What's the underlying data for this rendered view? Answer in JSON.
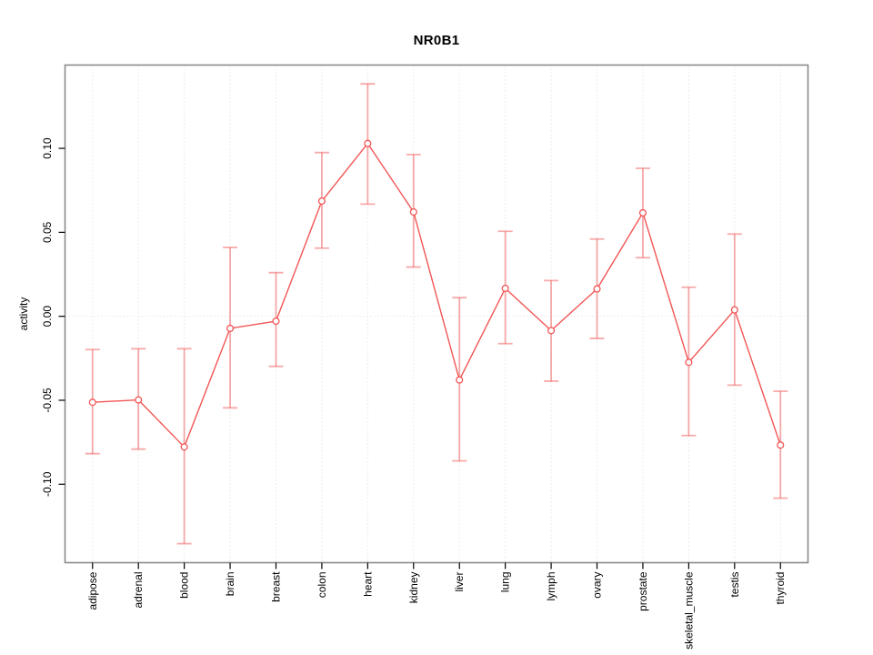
{
  "page": {
    "background": "#ffffff"
  },
  "chart_data": {
    "type": "line",
    "title": "NR0B1",
    "xlabel": "",
    "ylabel": "activity",
    "legend_position": "none",
    "marker": "open-circle",
    "error_bars": true,
    "grid": {
      "vertical_dotted_per_category": true,
      "horizontal_dotted_at": 0
    },
    "categories": [
      "adipose",
      "adrenal",
      "blood",
      "brain",
      "breast",
      "colon",
      "heart",
      "kidney",
      "liver",
      "lung",
      "lymph",
      "ovary",
      "prostate",
      "skeletal_muscle",
      "testis",
      "thyroid"
    ],
    "series": [
      {
        "name": "activity",
        "values": [
          -0.0512,
          -0.0498,
          -0.0778,
          -0.0072,
          -0.0029,
          0.0686,
          0.1029,
          0.0621,
          -0.0379,
          0.0166,
          -0.0085,
          0.0163,
          0.0616,
          -0.0274,
          0.0038,
          -0.0767
        ],
        "lower": [
          -0.0818,
          -0.0791,
          -0.1354,
          -0.0545,
          -0.0298,
          0.0406,
          0.0668,
          0.0293,
          -0.0861,
          -0.0163,
          -0.0386,
          -0.0132,
          0.0349,
          -0.071,
          -0.041,
          -0.1083
        ],
        "upper": [
          -0.0198,
          -0.0193,
          -0.0193,
          0.041,
          0.026,
          0.0975,
          0.1384,
          0.0963,
          0.0111,
          0.0506,
          0.0213,
          0.046,
          0.0881,
          0.0173,
          0.049,
          -0.0446
        ]
      }
    ],
    "ylim": [
      -0.1467,
      0.1496
    ],
    "yticks": [
      -0.1,
      -0.05,
      0.0,
      0.05,
      0.1
    ],
    "ytick_labels": [
      "-0.10",
      "-0.05",
      "0.00",
      "0.05",
      "0.10"
    ],
    "colors": {
      "line": "#f25555",
      "marker_stroke": "#f25555",
      "marker_fill": "#ffffff",
      "error_bar": "rgba(242,85,85,0.5)",
      "grid": "#d9d9d9",
      "box": "#8a8a8a",
      "tick": "#000000",
      "text": "#000000"
    }
  }
}
